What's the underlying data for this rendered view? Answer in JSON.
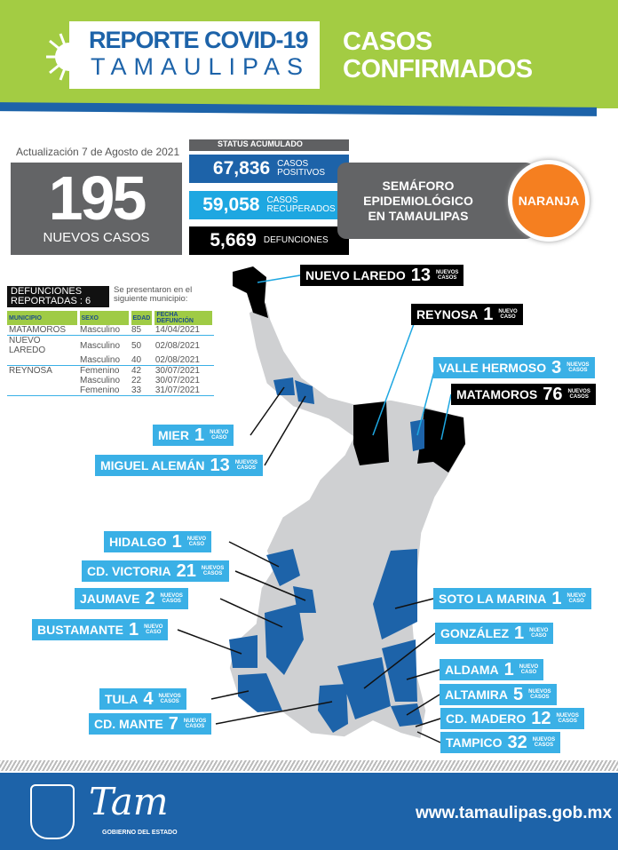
{
  "header": {
    "title_line1": "REPORTE COVID-19",
    "title_line2": "TAMAULIPAS",
    "section_line1": "CASOS",
    "section_line2": "CONFIRMADOS"
  },
  "update": "Actualización 7 de Agosto de 2021",
  "new_cases": {
    "value": "195",
    "label": "NUEVOS CASOS"
  },
  "status": {
    "heading": "STATUS ACUMULADO",
    "items": [
      {
        "value": "67,836",
        "label1": "CASOS",
        "label2": "POSITIVOS",
        "color": "#1d63a9"
      },
      {
        "value": "59,058",
        "label1": "CASOS",
        "label2": "RECUPERADOS",
        "color": "#1ea7e1"
      },
      {
        "value": "5,669",
        "label1": "DEFUNCIONES",
        "label2": "",
        "color": "#000000"
      }
    ]
  },
  "semaforo": {
    "line1": "SEMÁFORO",
    "line2": "EPIDEMIOLÓGICO",
    "line3": "EN TAMAULIPAS",
    "level": "NARANJA",
    "color": "#f57f20"
  },
  "deaths": {
    "heading1": "DEFUNCIONES",
    "heading2": "REPORTADAS : 6",
    "note1": "Se presentaron en el",
    "note2": "siguiente municipio:",
    "columns": [
      "MUNICIPIO",
      "SEXO",
      "EDAD",
      "FECHA DEFUNCIÓN"
    ],
    "rows": [
      [
        "MATAMOROS",
        "Masculino",
        "85",
        "14/04/2021"
      ],
      [
        "NUEVO LAREDO",
        "Masculino",
        "50",
        "02/08/2021"
      ],
      [
        "",
        "Masculino",
        "40",
        "02/08/2021"
      ],
      [
        "REYNOSA",
        "Femenino",
        "42",
        "30/07/2021"
      ],
      [
        "",
        "Masculino",
        "22",
        "30/07/2021"
      ],
      [
        "",
        "Femenino",
        "33",
        "31/07/2021"
      ]
    ]
  },
  "municipalities": [
    {
      "name": "NUEVO LAREDO",
      "count": "13",
      "unit1": "NUEVOS",
      "unit2": "CASOS",
      "style": "black"
    },
    {
      "name": "REYNOSA",
      "count": "1",
      "unit1": "NUEVO",
      "unit2": "CASO",
      "style": "black"
    },
    {
      "name": "VALLE HERMOSO",
      "count": "3",
      "unit1": "NUEVOS",
      "unit2": "CASOS",
      "style": "blue"
    },
    {
      "name": "MATAMOROS",
      "count": "76",
      "unit1": "NUEVOS",
      "unit2": "CASOS",
      "style": "black"
    },
    {
      "name": "MIER",
      "count": "1",
      "unit1": "NUEVO",
      "unit2": "CASO",
      "style": "blue"
    },
    {
      "name": "MIGUEL ALEMÁN",
      "count": "13",
      "unit1": "NUEVOS",
      "unit2": "CASOS",
      "style": "blue"
    },
    {
      "name": "HIDALGO",
      "count": "1",
      "unit1": "NUEVO",
      "unit2": "CASO",
      "style": "blue"
    },
    {
      "name": "CD. VICTORIA",
      "count": "21",
      "unit1": "NUEVOS",
      "unit2": "CASOS",
      "style": "blue"
    },
    {
      "name": "JAUMAVE",
      "count": "2",
      "unit1": "NUEVOS",
      "unit2": "CASOS",
      "style": "blue"
    },
    {
      "name": "BUSTAMANTE",
      "count": "1",
      "unit1": "NUEVO",
      "unit2": "CASO",
      "style": "blue"
    },
    {
      "name": "TULA",
      "count": "4",
      "unit1": "NUEVOS",
      "unit2": "CASOS",
      "style": "blue"
    },
    {
      "name": "CD. MANTE",
      "count": "7",
      "unit1": "NUEVOS",
      "unit2": "CASOS",
      "style": "blue"
    },
    {
      "name": "SOTO LA MARINA",
      "count": "1",
      "unit1": "NUEVO",
      "unit2": "CASO",
      "style": "blue"
    },
    {
      "name": "GONZÁLEZ",
      "count": "1",
      "unit1": "NUEVO",
      "unit2": "CASO",
      "style": "blue"
    },
    {
      "name": "ALDAMA",
      "count": "1",
      "unit1": "NUEVO",
      "unit2": "CASO",
      "style": "blue"
    },
    {
      "name": "ALTAMIRA",
      "count": "5",
      "unit1": "NUEVOS",
      "unit2": "CASOS",
      "style": "blue"
    },
    {
      "name": "CD. MADERO",
      "count": "12",
      "unit1": "NUEVOS",
      "unit2": "CASOS",
      "style": "blue"
    },
    {
      "name": "TAMPICO",
      "count": "32",
      "unit1": "NUEVOS",
      "unit2": "CASOS",
      "style": "blue"
    }
  ],
  "footer": {
    "logo_text": "Tam",
    "logo_subtitle": "GOBIERNO DEL ESTADO",
    "url": "www.tamaulipas.gob.mx"
  },
  "colors": {
    "green": "#a3cc43",
    "blue": "#1d63a9",
    "light_blue": "#3ab0e6",
    "gray": "#636466"
  }
}
